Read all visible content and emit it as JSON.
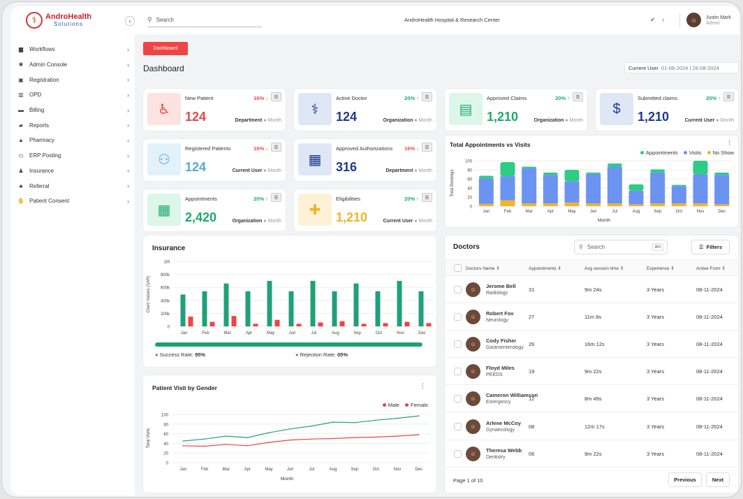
{
  "brand": {
    "name": "AndroHealth",
    "sub": "Solutions"
  },
  "sidebar": {
    "items": [
      {
        "label": "Workflows",
        "icon": "briefcase-icon",
        "glyph": "▆"
      },
      {
        "label": "Admin Console",
        "icon": "gear-icon",
        "glyph": "✱"
      },
      {
        "label": "Registration",
        "icon": "registration-icon",
        "glyph": "▣"
      },
      {
        "label": "OPD",
        "icon": "building-icon",
        "glyph": "▥"
      },
      {
        "label": "Billing",
        "icon": "card-icon",
        "glyph": "▬"
      },
      {
        "label": "Reports",
        "icon": "truck-icon",
        "glyph": "▰"
      },
      {
        "label": "Pharmacy",
        "icon": "pharmacy-icon",
        "glyph": "▲"
      },
      {
        "label": "ERP Posting",
        "icon": "monitor-icon",
        "glyph": "▭"
      },
      {
        "label": "Insurance",
        "icon": "family-icon",
        "glyph": "♟"
      },
      {
        "label": "Referral",
        "icon": "people-icon",
        "glyph": "♣"
      },
      {
        "label": "Patient Consent",
        "icon": "hand-icon",
        "glyph": "✋"
      }
    ]
  },
  "topbar": {
    "search_placeholder": "Search",
    "hospital": "AndroHealth Hospital & Research Center",
    "user_name": "Justin Mark",
    "user_role": "Admin"
  },
  "page": {
    "button": "Dashboard",
    "title": "Dashboard",
    "current_user_label": "Current User",
    "date_range": "01-08-2024 | 26-08-2024"
  },
  "kpis": [
    {
      "title": "New Patient",
      "pct": "16%",
      "dir": "down",
      "value": "124",
      "scope": "Department",
      "period": "Month",
      "icon": "wheelchair-icon",
      "glyph": "♿",
      "color": "#e5484d",
      "bg": "#fde2e2"
    },
    {
      "title": "Active Doctor",
      "pct": "20%",
      "dir": "up",
      "value": "124",
      "scope": "Organization",
      "period": "Month",
      "icon": "doctor-icon",
      "glyph": "⚕",
      "color": "#1e3a8a",
      "bg": "#dfe7f7"
    },
    {
      "title": "Approved Claims",
      "pct": "20%",
      "dir": "up",
      "value": "1,210",
      "scope": "Organization",
      "period": "Month",
      "icon": "claim-doc-icon",
      "glyph": "▤",
      "color": "#1eaa6a",
      "bg": "#dcf6ea"
    },
    {
      "title": "Submitted claims",
      "pct": "20%",
      "dir": "up",
      "value": "1,210",
      "scope": "Current User",
      "period": "Month",
      "icon": "invoice-icon",
      "glyph": "$",
      "color": "#1e3a8a",
      "bg": "#dfe7f7"
    },
    {
      "title": "Registered Patients",
      "pct": "16%",
      "dir": "down",
      "value": "124",
      "scope": "Current User",
      "period": "Month",
      "icon": "add-user-icon",
      "glyph": "⚇",
      "color": "#5aa8e0",
      "bg": "#e3f1fb"
    },
    {
      "title": "Approved Authorizations",
      "pct": "16%",
      "dir": "down",
      "value": "316",
      "scope": "Department",
      "period": "Month",
      "icon": "authorization-icon",
      "glyph": "▦",
      "color": "#1e3a8a",
      "bg": "#dfe7f7"
    },
    {
      "title": "Appointments",
      "pct": "20%",
      "dir": "up",
      "value": "2,420",
      "scope": "Organization",
      "period": "Month",
      "icon": "calendar-icon",
      "glyph": "▦",
      "color": "#1eaa6a",
      "bg": "#dcf6ea"
    },
    {
      "title": "Eligibilities",
      "pct": "20%",
      "dir": "up",
      "value": "1,210",
      "scope": "Current User",
      "period": "Month",
      "icon": "ambulance-icon",
      "glyph": "✚",
      "color": "#f0b429",
      "bg": "#fdf2d6"
    }
  ],
  "colors": {
    "appointments": "#2ecc85",
    "visits": "#6b93f2",
    "noshow": "#f5b32a",
    "success": "#20a07a",
    "reject": "#ef4444",
    "male": "#1ea47a",
    "female": "#ef4444"
  },
  "chart_data": [
    {
      "id": "appointments",
      "type": "bar",
      "title": "Total Appointments vs Visits",
      "xlabel": "Month",
      "ylabel": "Total Bookings",
      "ylim": [
        0,
        100
      ],
      "yticks": [
        "0",
        "20",
        "40",
        "60",
        "80",
        "100"
      ],
      "categories": [
        "Jan",
        "Feb",
        "Mar",
        "Apr",
        "May",
        "Jun",
        "Jul",
        "Aug",
        "Sep",
        "Oct",
        "Nov",
        "Dec"
      ],
      "legend_position": "top-right",
      "series": [
        {
          "name": "No Show",
          "values": [
            5,
            13,
            6,
            6,
            8,
            6,
            6,
            4,
            6,
            6,
            6,
            4
          ]
        },
        {
          "name": "Visits",
          "values": [
            56,
            53,
            78,
            63,
            47,
            65,
            81,
            30,
            68,
            38,
            64,
            65
          ]
        },
        {
          "name": "Appointments",
          "values": [
            6,
            31,
            3,
            5,
            25,
            3,
            7,
            14,
            7,
            3,
            30,
            5
          ]
        }
      ]
    },
    {
      "id": "insurance",
      "type": "bar",
      "title": "Insurance",
      "ylabel": "Claim Values (SAR)",
      "ylim": [
        0,
        1000000
      ],
      "yticks": [
        "0",
        "200k",
        "400k",
        "600k",
        "800k",
        "1M"
      ],
      "categories": [
        "Jan",
        "Feb",
        "Mar",
        "Apr",
        "May",
        "Jun",
        "Jul",
        "Aug",
        "Sep",
        "Oct",
        "Nov",
        "Dec"
      ],
      "series": [
        {
          "values": [
            490000,
            540000,
            660000,
            540000,
            700000,
            540000,
            700000,
            540000,
            660000,
            540000,
            700000,
            540000
          ]
        },
        {
          "values": [
            150000,
            70000,
            160000,
            40000,
            100000,
            40000,
            60000,
            80000,
            40000,
            50000,
            70000,
            50000
          ]
        }
      ],
      "success_label": "Success Rate:",
      "success_value": "95%",
      "reject_label": "Rejection Rate:",
      "reject_value": "05%",
      "success_rate": 0.95
    },
    {
      "id": "gender",
      "type": "line",
      "title": "Patient Visit by Gender",
      "xlabel": "Month",
      "ylabel": "Total Visits",
      "ylim": [
        0,
        100
      ],
      "yticks": [
        "0",
        "20",
        "40",
        "60",
        "80",
        "100"
      ],
      "categories": [
        "Jan",
        "Feb",
        "Mar",
        "Apr",
        "May",
        "Jun",
        "Jul",
        "Aug",
        "Sep",
        "Oct",
        "Nov",
        "Dec"
      ],
      "legend_position": "top-right",
      "series": [
        {
          "name": "Male",
          "values": [
            45,
            49,
            55,
            52,
            62,
            70,
            76,
            84,
            83,
            88,
            92,
            97
          ]
        },
        {
          "name": "Female",
          "values": [
            35,
            34,
            38,
            35,
            42,
            47,
            49,
            50,
            52,
            53,
            55,
            58
          ]
        }
      ]
    }
  ],
  "doctors": {
    "title": "Doctors",
    "search_placeholder": "Search",
    "shortcut": "⌘K",
    "filters": "Filters",
    "columns": [
      "Doctors Name ⇕",
      "Appointments ⇕",
      "Avg session time ⇕",
      "Experience ⇕",
      "Active From ⇕"
    ],
    "rows": [
      {
        "name": "Jerome Bell",
        "dept": "Radiology",
        "appts": "31",
        "avg": "9m 24s",
        "exp": "3 Years",
        "from": "08-11-2024"
      },
      {
        "name": "Robert Fox",
        "dept": "Neurology",
        "appts": "27",
        "avg": "11m 8s",
        "exp": "3 Years",
        "from": "08-11-2024"
      },
      {
        "name": "Cody Fisher",
        "dept": "Gastroenterology",
        "appts": "26",
        "avg": "16m 12s",
        "exp": "3 Years",
        "from": "08-11-2024"
      },
      {
        "name": "Floyd Miles",
        "dept": "PEEDS",
        "appts": "19",
        "avg": "9m 22s",
        "exp": "3 Years",
        "from": "08-11-2024"
      },
      {
        "name": "Cameron Williamson",
        "dept": "Emergency",
        "appts": "12",
        "avg": "8m 49s",
        "exp": "3 Years",
        "from": "08-11-2024"
      },
      {
        "name": "Arlene McCoy",
        "dept": "Gynaecology",
        "appts": "08",
        "avg": "12m 17s",
        "exp": "3 Years",
        "from": "08-11-2024"
      },
      {
        "name": "Theresa Webb",
        "dept": "Dentistry",
        "appts": "06",
        "avg": "9m 22s",
        "exp": "3 Years",
        "from": "08-11-2024"
      }
    ],
    "page_info": "Page 1 of 10",
    "prev": "Previous",
    "next": "Next"
  }
}
